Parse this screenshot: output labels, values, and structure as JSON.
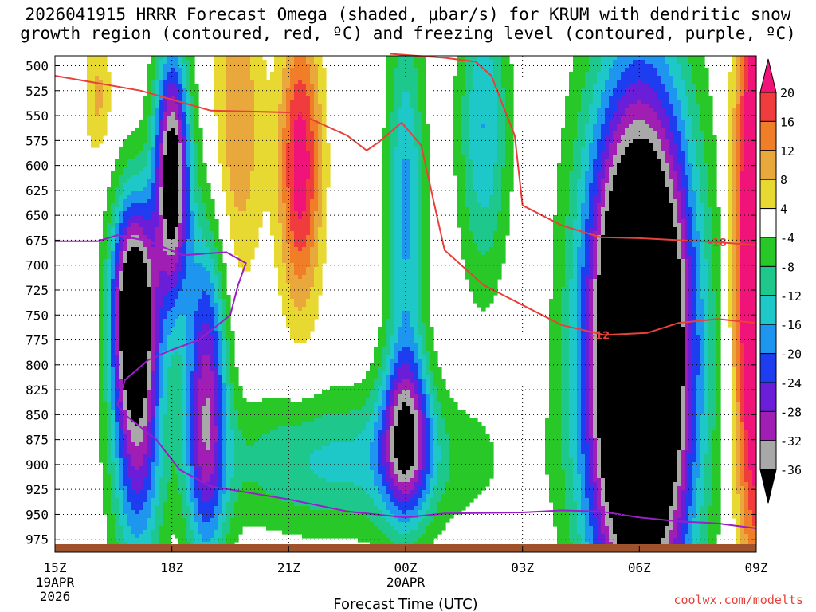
{
  "title_line1": "2026041915 HRRR Forecast Omega (shaded, μbar/s) for KRUM with dendritic snow",
  "title_line2": "growth region (contoured, red, ºC) and freezing level (contoured, purple, ºC)",
  "watermark": "coolwx.com/modelts",
  "chart_data": {
    "type": "heatmap",
    "title": "2026041915 HRRR Forecast Omega (shaded, μbar/s) for KRUM with dendritic snow growth region (contoured, red, ºC) and freezing level (contoured, purple, ºC)",
    "xlabel": "Forecast Time (UTC)",
    "x_ticks": [
      {
        "hour": 0,
        "label": "15Z",
        "sub1": "19APR",
        "sub2": "2026"
      },
      {
        "hour": 3,
        "label": "18Z",
        "sub1": "",
        "sub2": ""
      },
      {
        "hour": 6,
        "label": "21Z",
        "sub1": "",
        "sub2": ""
      },
      {
        "hour": 9,
        "label": "00Z",
        "sub1": "20APR",
        "sub2": ""
      },
      {
        "hour": 12,
        "label": "03Z",
        "sub1": "",
        "sub2": ""
      },
      {
        "hour": 15,
        "label": "06Z",
        "sub1": "",
        "sub2": ""
      },
      {
        "hour": 18,
        "label": "09Z",
        "sub1": "",
        "sub2": ""
      }
    ],
    "xlim_hours": [
      0,
      18
    ],
    "y_ticks": [
      500,
      525,
      550,
      575,
      600,
      625,
      650,
      675,
      700,
      725,
      750,
      775,
      800,
      825,
      850,
      875,
      900,
      925,
      950,
      975
    ],
    "ylim_hpa": [
      490,
      988
    ],
    "y_inverted": true,
    "grid": true,
    "colorbar": {
      "labels": [
        "20",
        "16",
        "12",
        "8",
        "4",
        "-4",
        "-8",
        "-12",
        "-16",
        "-20",
        "-24",
        "-28",
        "-32",
        "-36"
      ],
      "bins": [
        {
          "lo": 16,
          "hi": 20,
          "color": "#f03c3c"
        },
        {
          "lo": 12,
          "hi": 16,
          "color": "#f07e28"
        },
        {
          "lo": 8,
          "hi": 12,
          "color": "#e8a83c"
        },
        {
          "lo": 4,
          "hi": 8,
          "color": "#e8d832"
        },
        {
          "lo": -4,
          "hi": 4,
          "color": "#ffffff"
        },
        {
          "lo": -8,
          "hi": -4,
          "color": "#28c828"
        },
        {
          "lo": -12,
          "hi": -8,
          "color": "#1ec88c"
        },
        {
          "lo": -16,
          "hi": -12,
          "color": "#1ec8c8"
        },
        {
          "lo": -20,
          "hi": -16,
          "color": "#1e96f0"
        },
        {
          "lo": -24,
          "hi": -20,
          "color": "#1e3cf0"
        },
        {
          "lo": -28,
          "hi": -24,
          "color": "#6a1ed8"
        },
        {
          "lo": -32,
          "hi": -28,
          "color": "#a01eb4"
        },
        {
          "lo": -36,
          "hi": -32,
          "color": "#a8a8a8"
        }
      ],
      "top_arrow_color": "#f0147a",
      "bottom_arrow_color": "#000000"
    },
    "omega_features": [
      {
        "name": "upward core 18Z",
        "hour": 3.0,
        "p": 612,
        "sx": 0.33,
        "sp": 90,
        "amp": -42
      },
      {
        "name": "upward core 17Z",
        "hour": 2.0,
        "p": 735,
        "sx": 0.4,
        "sp": 75,
        "amp": -38
      },
      {
        "name": "upward column 19Z",
        "hour": 3.9,
        "p": 835,
        "sx": 0.38,
        "sp": 120,
        "amp": -30
      },
      {
        "name": "upward mid column 17Z",
        "hour": 2.1,
        "p": 860,
        "sx": 0.45,
        "sp": 110,
        "amp": -26
      },
      {
        "name": "upward layer 21Z-00Z",
        "hour": 7.4,
        "p": 898,
        "sx": 2.5,
        "sp": 50,
        "amp": -13
      },
      {
        "name": "upward core 00Z",
        "hour": 9.0,
        "p": 870,
        "sx": 0.45,
        "sp": 60,
        "amp": -28
      },
      {
        "name": "upward column 00Z",
        "hour": 9.0,
        "p": 640,
        "sx": 0.35,
        "sp": 140,
        "amp": -17
      },
      {
        "name": "upward column 02Z",
        "hour": 11.0,
        "p": 560,
        "sx": 0.45,
        "sp": 110,
        "amp": -16
      },
      {
        "name": "upward core 06Z",
        "hour": 15.0,
        "p": 790,
        "sx": 0.95,
        "sp": 185,
        "amp": -72
      },
      {
        "name": "downward 19Z-20Z",
        "hour": 4.7,
        "p": 560,
        "sx": 0.45,
        "sp": 110,
        "amp": 12
      },
      {
        "name": "downward 21Z",
        "hour": 6.3,
        "p": 600,
        "sx": 0.38,
        "sp": 100,
        "amp": 23
      },
      {
        "name": "downward 08Z",
        "hour": 18.0,
        "p": 700,
        "sx": 0.38,
        "sp": 210,
        "amp": 36
      },
      {
        "name": "downward 16Z",
        "hour": 1.1,
        "p": 530,
        "sx": 0.25,
        "sp": 45,
        "amp": 9
      }
    ],
    "dendritic_contours": [
      {
        "label": "-12",
        "points": [
          [
            0,
            510
          ],
          [
            2.2,
            525
          ],
          [
            4,
            545
          ],
          [
            6.2,
            547
          ],
          [
            7.5,
            570
          ],
          [
            8.0,
            585
          ],
          [
            8.3,
            577
          ],
          [
            8.9,
            557
          ],
          [
            9.4,
            580
          ],
          [
            10.0,
            685
          ],
          [
            11.0,
            720
          ],
          [
            12.0,
            740
          ],
          [
            13.0,
            760
          ],
          [
            14.1,
            770
          ],
          [
            15.2,
            768
          ],
          [
            16.0,
            758
          ],
          [
            17.0,
            754
          ],
          [
            18.0,
            758
          ]
        ],
        "label_at": [
          14.0,
          770
        ]
      },
      {
        "label": "-18",
        "points": [
          [
            8.6,
            488
          ],
          [
            10,
            492
          ],
          [
            10.8,
            496
          ],
          [
            11.2,
            510
          ],
          [
            11.8,
            570
          ],
          [
            12.0,
            640
          ],
          [
            13.0,
            660
          ],
          [
            14.0,
            672
          ],
          [
            15.0,
            673
          ],
          [
            16.0,
            675
          ],
          [
            17.0,
            677
          ],
          [
            18.0,
            680
          ]
        ],
        "label_at": [
          17.0,
          677
        ]
      }
    ],
    "freezing_level": {
      "label": "0",
      "points": [
        [
          0,
          676
        ],
        [
          1.1,
          676
        ],
        [
          1.6,
          670
        ],
        [
          2.4,
          676
        ],
        [
          3.3,
          690
        ],
        [
          4.4,
          687
        ],
        [
          4.9,
          698
        ],
        [
          4.7,
          720
        ],
        [
          4.5,
          750
        ],
        [
          3.7,
          775
        ],
        [
          3.0,
          785
        ],
        [
          2.4,
          795
        ],
        [
          1.8,
          815
        ],
        [
          1.6,
          840
        ],
        [
          1.8,
          850
        ],
        [
          2.6,
          875
        ],
        [
          3.2,
          905
        ],
        [
          4.0,
          922
        ],
        [
          6.0,
          935
        ],
        [
          7.5,
          947
        ],
        [
          9.0,
          953
        ],
        [
          10.0,
          949
        ],
        [
          12.0,
          948
        ],
        [
          13.0,
          946
        ],
        [
          14.0,
          947
        ],
        [
          15.0,
          953
        ],
        [
          16.0,
          957
        ],
        [
          17.0,
          959
        ],
        [
          18.0,
          964
        ]
      ]
    },
    "ground_color": "#a0522d"
  }
}
